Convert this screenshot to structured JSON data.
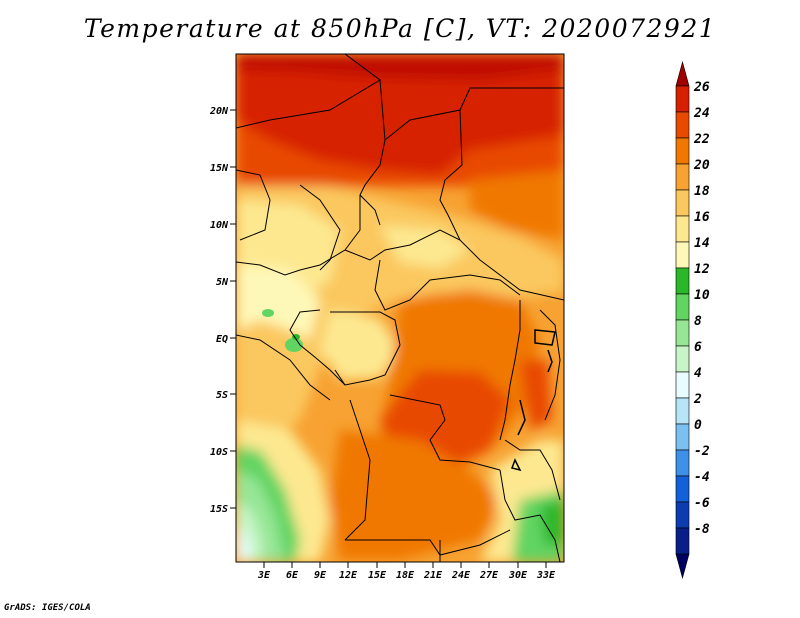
{
  "title": "Temperature at 850hPa [C], VT: 2020072921",
  "credit": "GrADS: IGES/COLA",
  "map": {
    "lat_labels": [
      "20N",
      "15N",
      "10N",
      "5N",
      "EQ",
      "5S",
      "10S",
      "15S"
    ],
    "lon_labels": [
      "3E",
      "6E",
      "9E",
      "12E",
      "15E",
      "18E",
      "21E",
      "24E",
      "27E",
      "30E",
      "33E"
    ]
  },
  "colorbar": {
    "labels": [
      "26",
      "24",
      "22",
      "20",
      "18",
      "16",
      "14",
      "12",
      "10",
      "8",
      "6",
      "4",
      "2",
      "0",
      "-2",
      "-4",
      "-6",
      "-8"
    ],
    "colors": [
      "#a00000",
      "#d72000",
      "#e84a00",
      "#f07800",
      "#f7a232",
      "#fbc85f",
      "#fde890",
      "#fef8b8",
      "#2ab82a",
      "#62d462",
      "#96e696",
      "#c8f5c8",
      "#e8fbff",
      "#b8e4f8",
      "#7cc0f2",
      "#3e90e8",
      "#1460d8",
      "#0c3cb0",
      "#081e88",
      "#000060"
    ]
  }
}
